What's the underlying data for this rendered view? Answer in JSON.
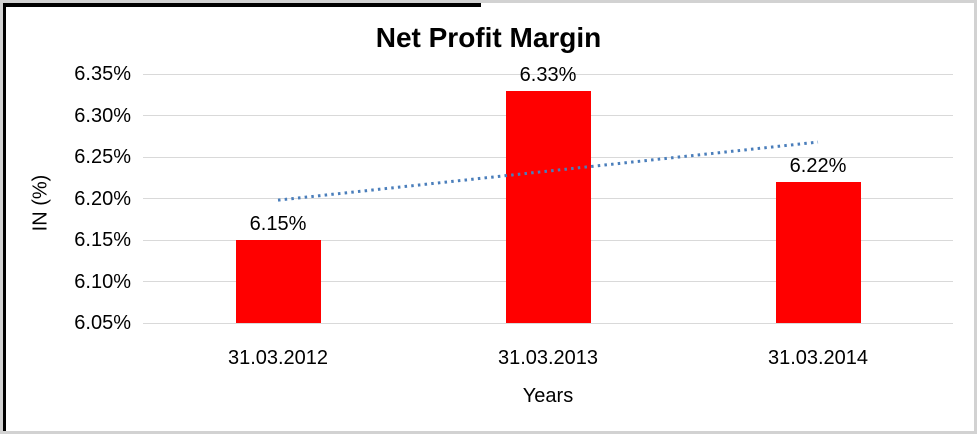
{
  "chart_data": {
    "type": "bar",
    "title": "Net Profit Margin",
    "categories": [
      "31.03.2012",
      "31.03.2013",
      "31.03.2014"
    ],
    "values": [
      6.15,
      6.33,
      6.22
    ],
    "data_labels": [
      "6.15%",
      "6.33%",
      "6.22%"
    ],
    "xlabel": "Years",
    "ylabel": "IN (%)",
    "ylim": [
      6.05,
      6.35
    ],
    "ytick_step": 0.05,
    "ytick_labels": [
      "6.05%",
      "6.10%",
      "6.15%",
      "6.20%",
      "6.25%",
      "6.30%",
      "6.35%"
    ],
    "bar_color": "#ff0000",
    "gridline_color": "#d9d9d9",
    "grid": true,
    "legend": "none",
    "trendline": {
      "style": "dotted",
      "color": "#4a7ebb",
      "start_value": 6.198,
      "end_value": 6.268
    }
  }
}
